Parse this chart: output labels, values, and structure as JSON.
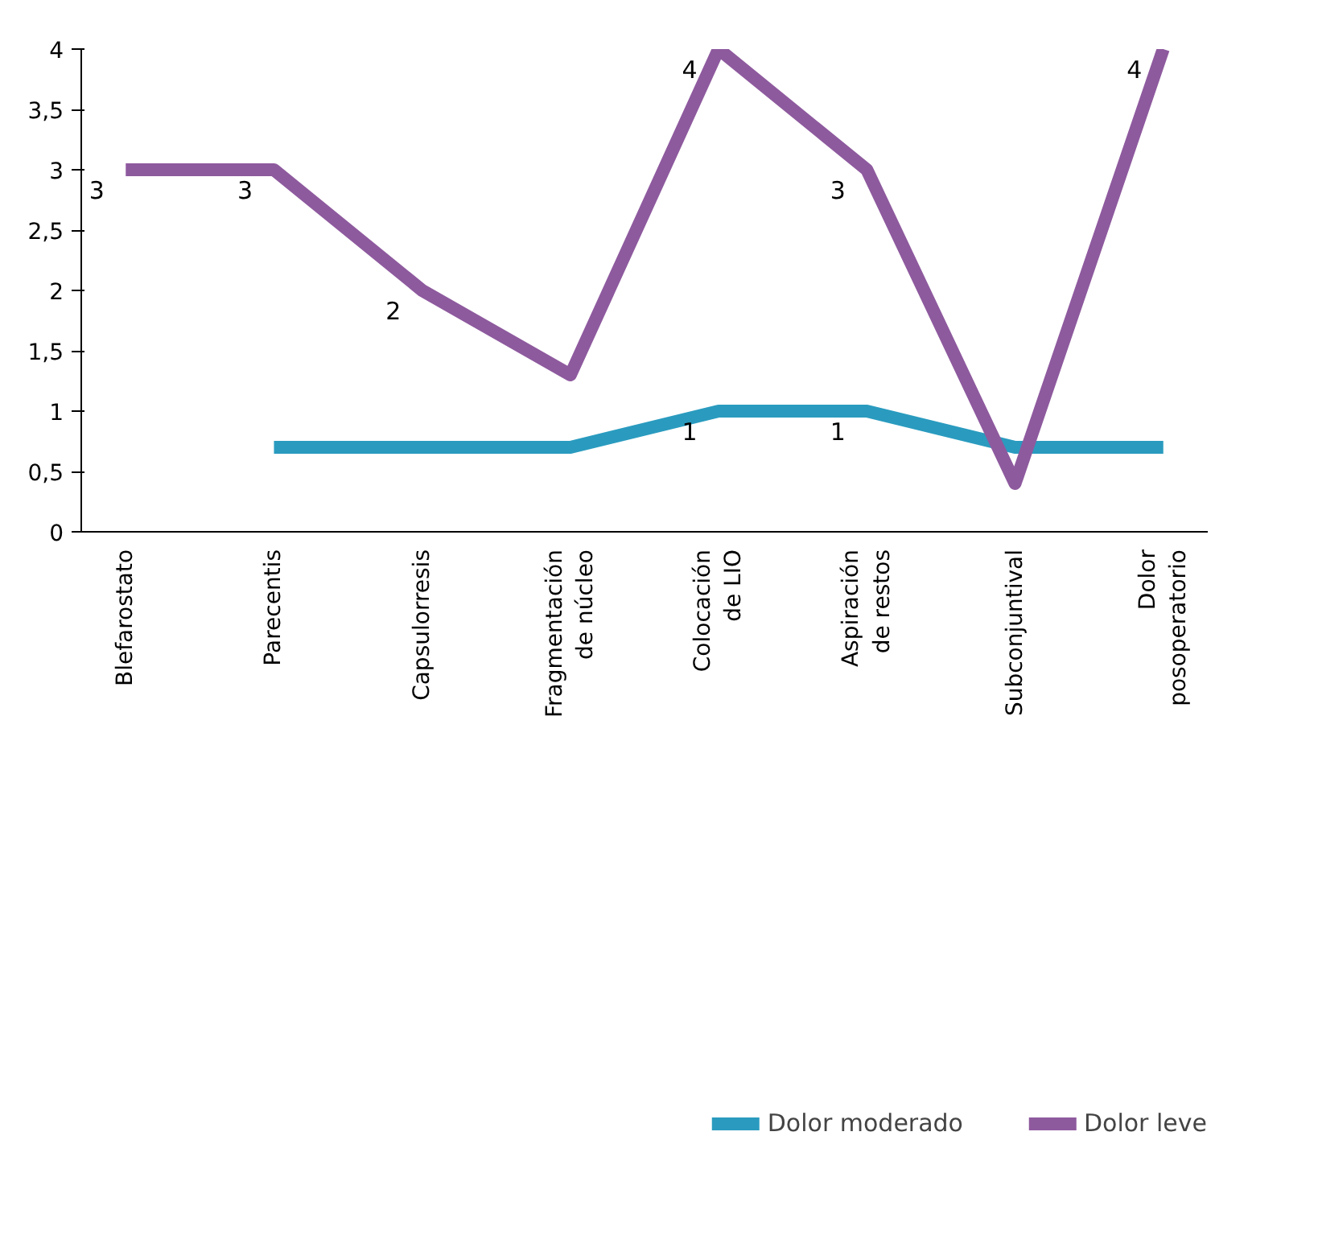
{
  "chart_data": {
    "type": "line",
    "categories": [
      "Blefarostato",
      "Parecentis",
      "Capsulorresis",
      "Fragmentación de núcleo",
      "Colocación de LIO",
      "Aspiración de restos",
      "Subconjuntival",
      "Dolor posoperatorio"
    ],
    "series": [
      {
        "name": "Dolor moderado",
        "color": "#2a9bbf",
        "values": [
          null,
          0.7,
          0.7,
          0.7,
          1,
          1,
          0.7,
          0.7
        ],
        "value_labels": [
          null,
          null,
          null,
          null,
          "1",
          "1",
          null,
          null
        ]
      },
      {
        "name": "Dolor leve",
        "color": "#8e5a9e",
        "values": [
          3,
          3,
          2,
          1.3,
          4,
          3,
          0.4,
          4
        ],
        "value_labels": [
          "3",
          "3",
          "2",
          null,
          "4",
          "3",
          null,
          "4"
        ]
      }
    ],
    "ylim": [
      0,
      4
    ],
    "yticks": [
      0,
      {
        "value": 0.5,
        "label": "0,5"
      },
      1,
      {
        "value": 1.5,
        "label": "1,5"
      },
      2,
      {
        "value": 2.5,
        "label": "2,5"
      },
      3,
      {
        "value": 3.5,
        "label": "3,5"
      },
      4
    ],
    "grid": false,
    "legend": "bottom",
    "marker": "none",
    "line_style": "solid"
  }
}
